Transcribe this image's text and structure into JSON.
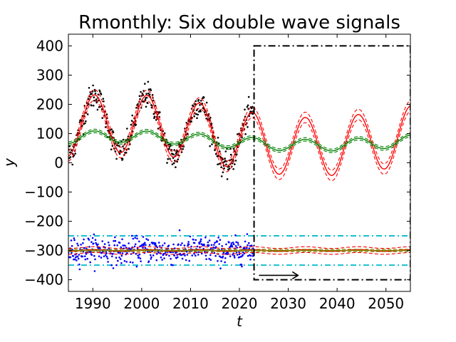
{
  "chart_data": {
    "type": "line",
    "title": "Rmonthly: Six double wave signals",
    "xlabel": "t",
    "ylabel": "y",
    "xlim": [
      1985,
      2055
    ],
    "ylim": [
      -440,
      440
    ],
    "xticks": [
      1990,
      2000,
      2010,
      2020,
      2030,
      2040,
      2050
    ],
    "yticks": [
      -400,
      -300,
      -200,
      -100,
      0,
      100,
      200,
      300,
      400
    ],
    "ytick_labels": [
      "−400",
      "−300",
      "−200",
      "−100",
      "0",
      "100",
      "200",
      "300",
      "400"
    ],
    "observation_end": 2023,
    "forecast_box": {
      "x0": 2023,
      "x1": 2055,
      "y0": -400,
      "y1": 400
    },
    "arrow": {
      "from": [
        2024,
        -385
      ],
      "to": [
        2032,
        -385
      ],
      "symbol": "⟶"
    },
    "horizontal_lines": [
      {
        "y": -250,
        "color": "#17becf",
        "style": "dashdot"
      },
      {
        "y": -350,
        "color": "#17becf",
        "style": "dashdot"
      }
    ],
    "series": [
      {
        "name": "upper-observations",
        "color": "#000000",
        "kind": "scatter",
        "model": "double-wave",
        "x_range": [
          1985,
          2023
        ],
        "base": 95,
        "amp1": 100,
        "period1": 10.8,
        "phase1": 1990.3,
        "amp2": 40,
        "period2": 80,
        "phase2": 1995,
        "noise": 22,
        "n": 460
      },
      {
        "name": "upper-fit-red",
        "color": "#ff0000",
        "kind": "band",
        "model": "double-wave",
        "x_range": [
          1985,
          2055
        ],
        "base": 95,
        "amp1": 100,
        "period1": 10.8,
        "phase1": 1990.3,
        "amp2": 40,
        "period2": 80,
        "phase2": 1995,
        "band_width": 18
      },
      {
        "name": "upper-trend-green",
        "color": "#008000",
        "kind": "band",
        "model": "double-wave",
        "x_range": [
          1985,
          2055
        ],
        "base": 75,
        "amp1": 20,
        "period1": 10.8,
        "phase1": 1990.3,
        "amp2": 15,
        "period2": 80,
        "phase2": 1995,
        "band_width": 6
      },
      {
        "name": "lower-observations",
        "color": "#0000ff",
        "kind": "scatter",
        "model": "double-wave",
        "x_range": [
          1985,
          2023
        ],
        "base": -300,
        "amp1": 4,
        "period1": 10.8,
        "phase1": 1990.3,
        "amp2": 0,
        "period2": 80,
        "phase2": 1995,
        "noise": 22,
        "n": 460
      },
      {
        "name": "lower-fit-red",
        "color": "#ff0000",
        "kind": "band",
        "model": "double-wave",
        "x_range": [
          1985,
          2055
        ],
        "base": -300,
        "amp1": 3,
        "period1": 10.8,
        "phase1": 1990.3,
        "amp2": 0,
        "period2": 80,
        "phase2": 1995,
        "band_width": 10
      },
      {
        "name": "lower-trend-olive",
        "color": "#808000",
        "kind": "band",
        "model": "double-wave",
        "x_range": [
          1985,
          2055
        ],
        "base": -300,
        "amp1": 0,
        "period1": 10.8,
        "phase1": 1990.3,
        "amp2": 0,
        "period2": 80,
        "phase2": 1995,
        "band_width": 4
      }
    ]
  }
}
